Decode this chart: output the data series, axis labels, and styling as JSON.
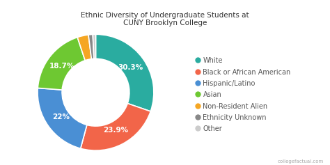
{
  "title": "Ethnic Diversity of Undergraduate Students at\nCUNY Brooklyn College",
  "labels": [
    "White",
    "Black or African American",
    "Hispanic/Latino",
    "Asian",
    "Non-Resident Alien",
    "Ethnicity Unknown",
    "Other"
  ],
  "values": [
    30.3,
    23.9,
    22.0,
    18.7,
    3.1,
    1.2,
    0.8
  ],
  "colors": [
    "#2aaca0",
    "#f26549",
    "#4a8fd4",
    "#6ec832",
    "#f5a623",
    "#888888",
    "#cccccc"
  ],
  "pct_labels": [
    "30.3%",
    "23.9%",
    "22%",
    "18.7%",
    "",
    "",
    ""
  ],
  "background_color": "#ffffff",
  "title_fontsize": 7.5,
  "legend_fontsize": 7.0,
  "wedge_fontsize": 7.5
}
